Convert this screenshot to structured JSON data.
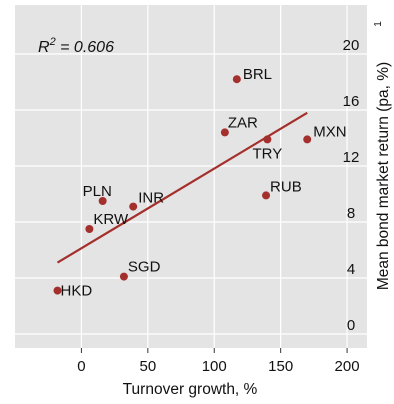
{
  "chart_data": {
    "type": "scatter",
    "xlabel": "Turnover growth, %",
    "ylabel": "Mean bond market return (pa, %)",
    "ylabel_footnote": "1",
    "annotation": {
      "r2_prefix": "R",
      "r2_exp": "2",
      "r2_value": " = 0.606"
    },
    "xlim": [
      -50,
      215
    ],
    "ylim": [
      -1,
      23.5
    ],
    "xticks": [
      0,
      50,
      100,
      150,
      200
    ],
    "yticks": [
      0,
      4,
      8,
      12,
      16,
      20
    ],
    "grid": true,
    "points": [
      {
        "label": "BRL",
        "x": 117,
        "y": 18.2
      },
      {
        "label": "ZAR",
        "x": 108,
        "y": 14.4
      },
      {
        "label": "TRY",
        "x": 140,
        "y": 13.9
      },
      {
        "label": "MXN",
        "x": 170,
        "y": 13.9
      },
      {
        "label": "RUB",
        "x": 139,
        "y": 9.9
      },
      {
        "label": "PLN",
        "x": 16,
        "y": 9.5
      },
      {
        "label": "INR",
        "x": 39,
        "y": 9.1
      },
      {
        "label": "KRW",
        "x": 6,
        "y": 7.5
      },
      {
        "label": "SGD",
        "x": 32,
        "y": 4.1
      },
      {
        "label": "HKD",
        "x": -18,
        "y": 3.1
      }
    ],
    "trendline": {
      "x": [
        -18,
        170
      ],
      "y": [
        5.1,
        15.8
      ]
    },
    "colors": {
      "point": "#a3302c",
      "trend": "#a3302c",
      "panel": "#e4e4e4",
      "grid": "#ffffff"
    }
  }
}
